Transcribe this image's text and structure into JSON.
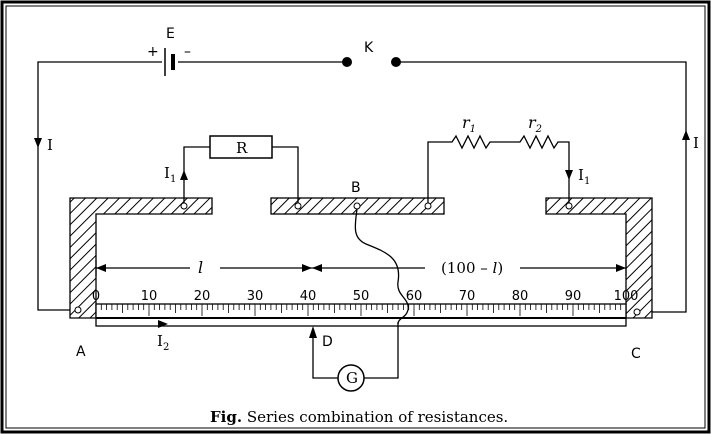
{
  "labels": {
    "battery": "E",
    "plus": "+",
    "minus": "–",
    "key": "K",
    "current_left": "I",
    "current_right": "I",
    "i1_left": "I",
    "i1_left_sub": "1",
    "i1_right": "I",
    "i1_right_sub": "1",
    "resistor": "R",
    "r1": "r",
    "r1_sub": "1",
    "r2": "r",
    "r2_sub": "2",
    "point_a": "A",
    "point_b": "B",
    "point_c": "C",
    "point_d": "D",
    "galvanometer": "G",
    "i2": "I",
    "i2_sub": "2",
    "length_l": "l",
    "length_rest_prefix": "(100 – ",
    "length_rest_var": "l",
    "length_rest_suffix": ")"
  },
  "scale": {
    "ticks": [
      "0",
      "10",
      "20",
      "30",
      "40",
      "50",
      "60",
      "70",
      "80",
      "90",
      "100"
    ]
  },
  "caption": {
    "bold": "Fig.",
    "text": " Series combination of resistances."
  },
  "colors": {
    "frame": "#000000",
    "background": "#ffffff",
    "ink": "#000000"
  }
}
